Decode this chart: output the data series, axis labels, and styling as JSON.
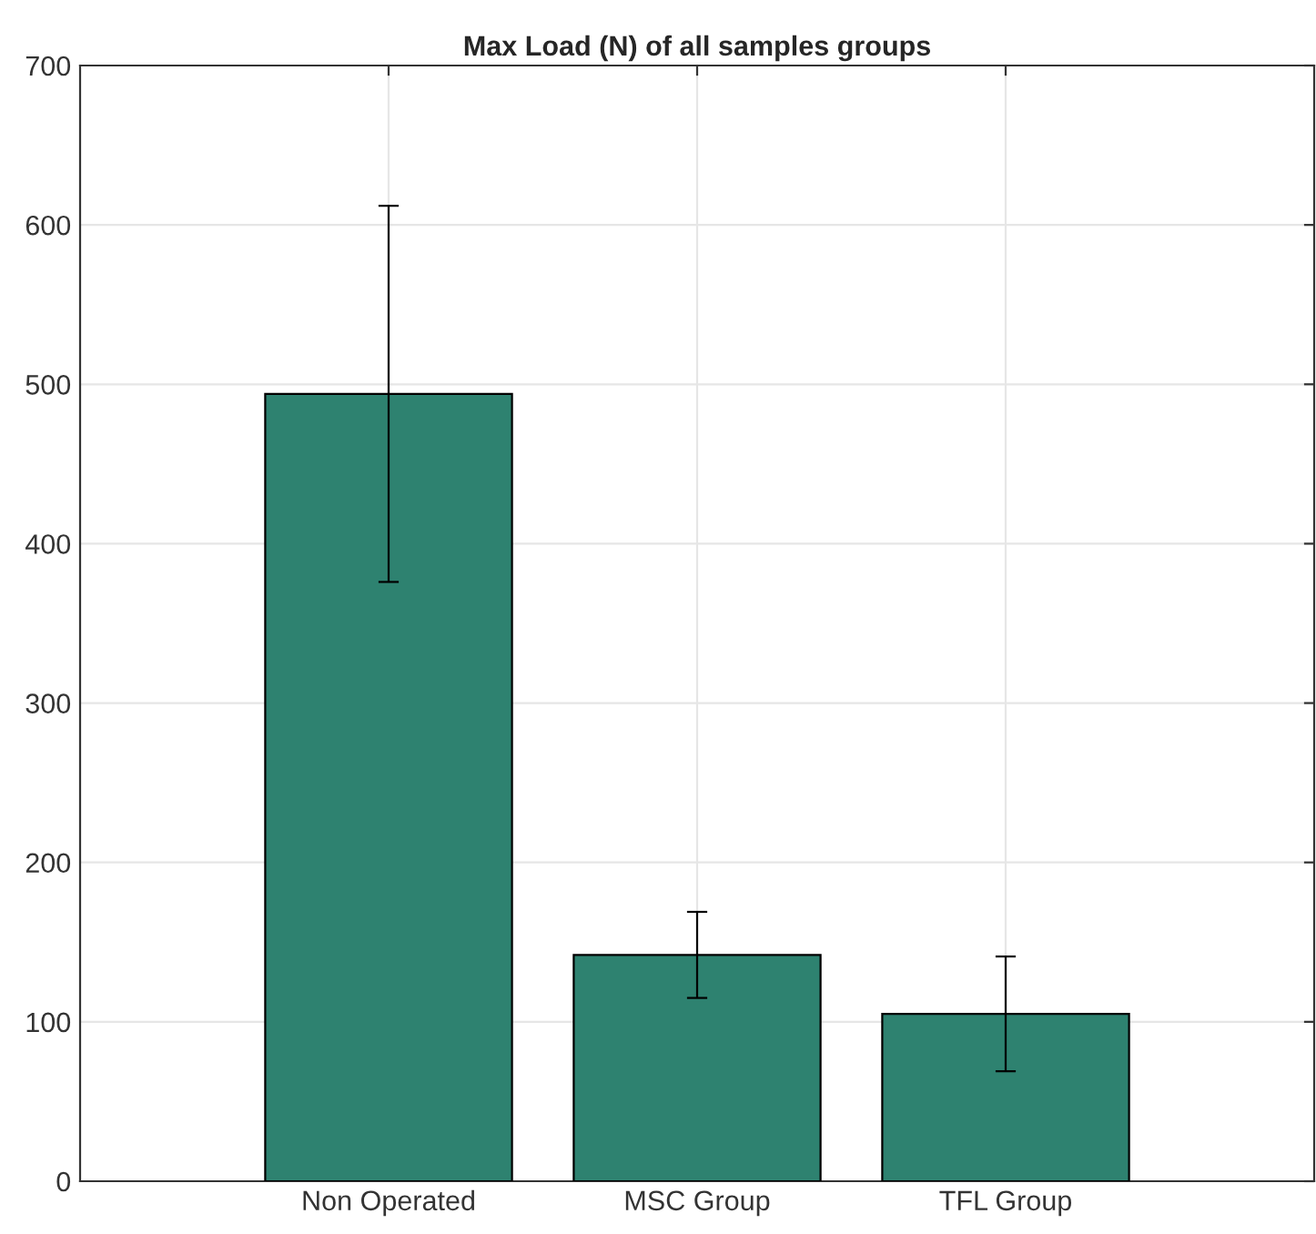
{
  "chart_data": {
    "type": "bar",
    "title": "Max Load (N) of all samples groups",
    "categories": [
      "Non Operated",
      "MSC Group",
      "TFL Group"
    ],
    "values": [
      494,
      142,
      105
    ],
    "errors": [
      118,
      27,
      36
    ],
    "color": "#2e8270",
    "ylim": [
      0,
      700
    ],
    "yticks": [
      0,
      100,
      200,
      300,
      400,
      500,
      600,
      700
    ],
    "grid": true
  }
}
